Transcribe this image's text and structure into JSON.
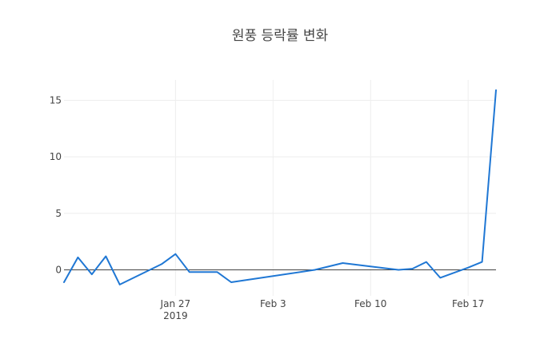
{
  "chart_data": {
    "type": "line",
    "title": "원풍 등락률 변화",
    "xlabel": "",
    "ylabel": "",
    "line_color": "#1f77d4",
    "grid": true,
    "x": [
      "2019-01-19",
      "2019-01-20",
      "2019-01-21",
      "2019-01-22",
      "2019-01-23",
      "2019-01-26",
      "2019-01-27",
      "2019-01-28",
      "2019-01-30",
      "2019-01-31",
      "2019-02-06",
      "2019-02-08",
      "2019-02-10",
      "2019-02-12",
      "2019-02-13",
      "2019-02-14",
      "2019-02-15",
      "2019-02-17",
      "2019-02-18",
      "2019-02-19"
    ],
    "values": [
      -1.1,
      1.1,
      -0.4,
      1.2,
      -1.3,
      0.5,
      1.4,
      -0.2,
      -0.2,
      -1.1,
      0.0,
      0.6,
      0.3,
      0.0,
      0.1,
      0.7,
      -0.7,
      0.2,
      0.7,
      15.9
    ],
    "xlim": [
      "2019-01-19",
      "2019-02-19"
    ],
    "ylim": [
      -2.3,
      16.8
    ],
    "x_ticks": [
      {
        "date": "2019-01-27",
        "label": "Jan 27",
        "sublabel": "2019"
      },
      {
        "date": "2019-02-03",
        "label": "Feb 3",
        "sublabel": ""
      },
      {
        "date": "2019-02-10",
        "label": "Feb 10",
        "sublabel": ""
      },
      {
        "date": "2019-02-17",
        "label": "Feb 17",
        "sublabel": ""
      }
    ],
    "y_ticks": [
      0,
      5,
      10,
      15
    ],
    "zero_line": true
  }
}
